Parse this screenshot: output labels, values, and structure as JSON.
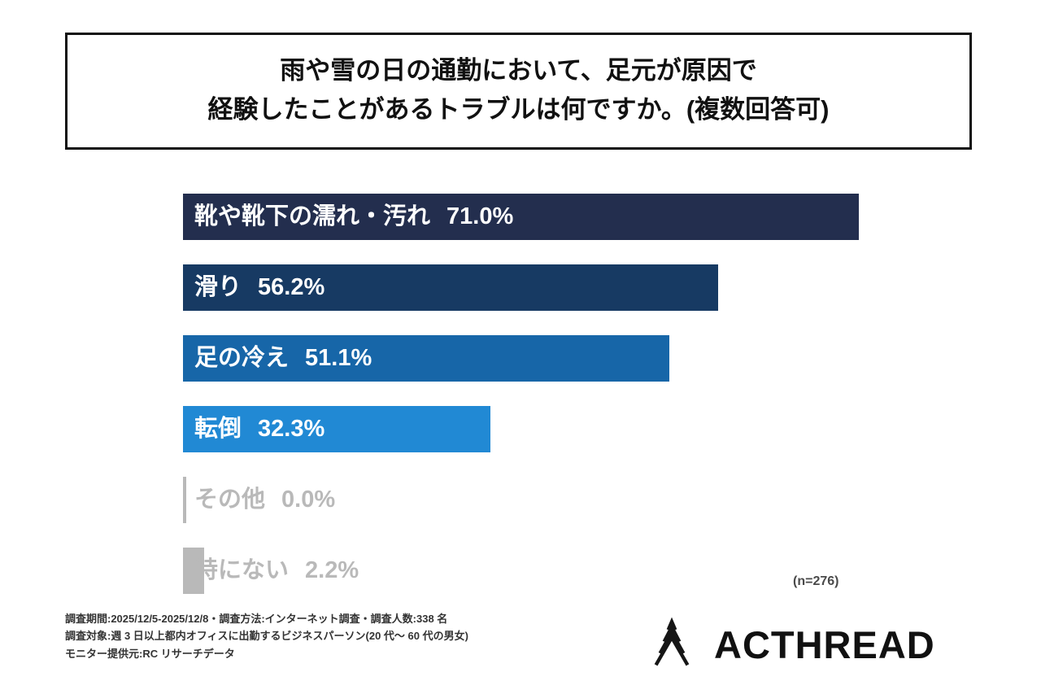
{
  "title": {
    "line1": "雨や雪の日の通勤において、足元が原因で",
    "line2": "経験したことがあるトラブルは何ですか。(複数回答可)"
  },
  "chart_data": {
    "type": "bar",
    "orientation": "horizontal",
    "title": "雨や雪の日の通勤において、足元が原因で経験したことがあるトラブルは何ですか。(複数回答可)",
    "categories": [
      "靴や靴下の濡れ・汚れ",
      "滑り",
      "足の冷え",
      "転倒",
      "その他",
      "特にない"
    ],
    "values": [
      71.0,
      56.2,
      51.1,
      32.3,
      0.0,
      2.2
    ],
    "value_labels": [
      "71.0%",
      "56.2%",
      "51.1%",
      "32.3%",
      "0.0%",
      "2.2%"
    ],
    "bar_colors": [
      "#232e4e",
      "#173a63",
      "#1766a8",
      "#2189d4",
      "#b9b9b9",
      "#b9b9b9"
    ],
    "label_colors": [
      "#ffffff",
      "#ffffff",
      "#ffffff",
      "#ffffff",
      "#b9b9b9",
      "#b9b9b9"
    ],
    "xlim": [
      0,
      100
    ],
    "n_label": "(n=276)"
  },
  "footer": {
    "line1": "調査期間:2025/12/5-2025/12/8・調査方法:インターネット調査・調査人数:338 名",
    "line2": "調査対象:週 3 日以上都内オフィスに出勤するビジネスパーソン(20 代〜 60 代の男女)",
    "line3": "モニター提供元:RC リサーチデータ"
  },
  "logo": {
    "text": "ACTHREAD"
  }
}
